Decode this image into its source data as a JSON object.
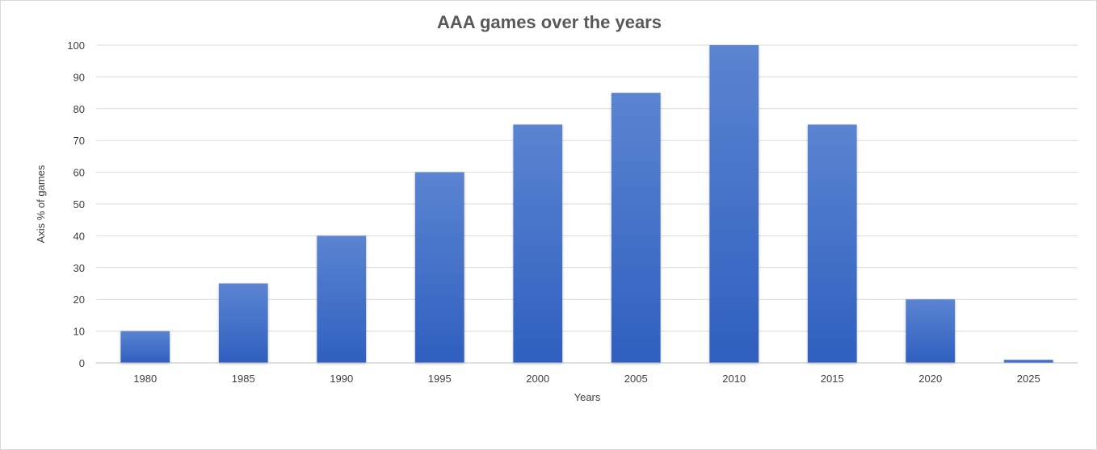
{
  "chart_data": {
    "type": "bar",
    "title": "AAA games over the years",
    "xlabel": "Years",
    "ylabel": "Axis % of games",
    "categories": [
      "1980",
      "1985",
      "1990",
      "1995",
      "2000",
      "2005",
      "2010",
      "2015",
      "2020",
      "2025"
    ],
    "values": [
      10,
      25,
      40,
      60,
      75,
      85,
      100,
      75,
      20,
      1
    ],
    "ylim": [
      0,
      100
    ],
    "yticks": [
      0,
      10,
      20,
      30,
      40,
      50,
      60,
      70,
      80,
      90,
      100
    ],
    "grid": true,
    "legend": "none",
    "colors": {
      "bar_top": "#5b84d1",
      "bar_bottom": "#2f5fbf",
      "gridline": "#d9d9d9",
      "axis_line": "#bfbfbf",
      "title": "#595959",
      "text": "#404040"
    }
  }
}
